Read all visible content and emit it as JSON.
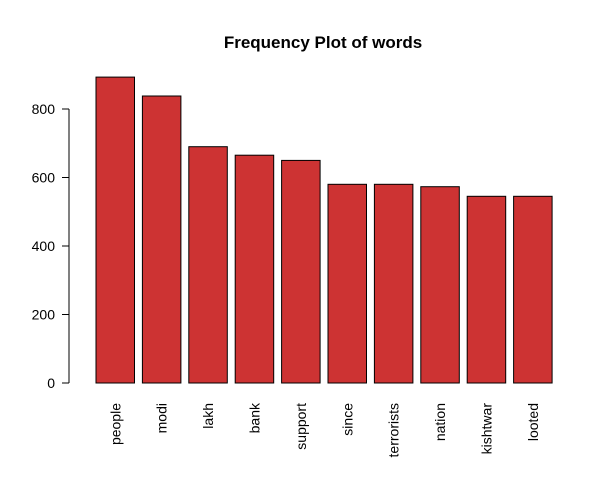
{
  "chart_data": {
    "type": "bar",
    "title": "Frequency Plot of words",
    "xlabel": "",
    "ylabel": "",
    "categories": [
      "people",
      "modi",
      "lakh",
      "bank",
      "support",
      "since",
      "terrorists",
      "nation",
      "kishtwar",
      "looted"
    ],
    "values": [
      893,
      838,
      690,
      665,
      650,
      580,
      580,
      573,
      545,
      545
    ],
    "ylim": [
      0,
      900
    ],
    "yticks": [
      0,
      200,
      400,
      600,
      800
    ],
    "grid": false,
    "legend": "none",
    "bar_color": "#CD3333",
    "bar_border_color": "#000000"
  }
}
